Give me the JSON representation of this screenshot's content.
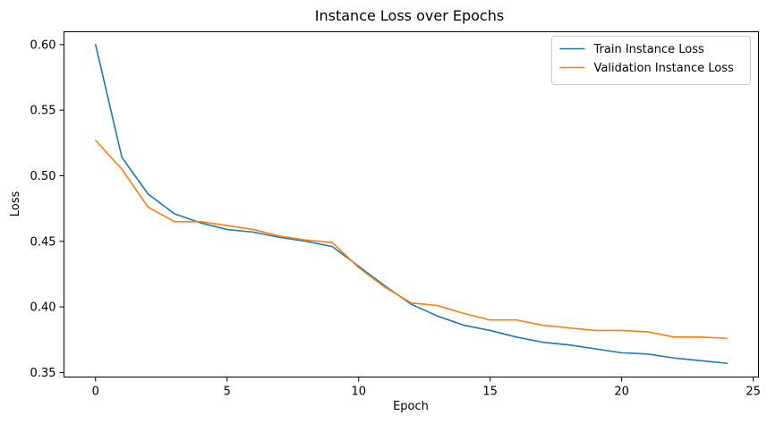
{
  "chart_data": {
    "type": "line",
    "title": "Instance Loss over Epochs",
    "xlabel": "Epoch",
    "ylabel": "Loss",
    "xlim": [
      -1.2,
      25.2
    ],
    "ylim": [
      0.3465,
      0.6098
    ],
    "x_ticks": [
      0,
      5,
      10,
      15,
      20,
      25
    ],
    "y_ticks": [
      0.35,
      0.4,
      0.45,
      0.5,
      0.55,
      0.6
    ],
    "x_tick_labels": [
      "0",
      "5",
      "10",
      "15",
      "20",
      "25"
    ],
    "y_tick_labels": [
      "0.35",
      "0.40",
      "0.45",
      "0.50",
      "0.55",
      "0.60"
    ],
    "grid": false,
    "legend_position": "top-right",
    "x": [
      0,
      1,
      2,
      3,
      4,
      5,
      6,
      7,
      8,
      9,
      10,
      11,
      12,
      13,
      14,
      15,
      16,
      17,
      18,
      19,
      20,
      21,
      22,
      23,
      24
    ],
    "series": [
      {
        "name": "Train Instance Loss",
        "color": "#1f77b4",
        "values": [
          0.6,
          0.514,
          0.486,
          0.471,
          0.464,
          0.459,
          0.457,
          0.453,
          0.45,
          0.446,
          0.431,
          0.416,
          0.402,
          0.393,
          0.386,
          0.382,
          0.377,
          0.373,
          0.371,
          0.368,
          0.365,
          0.364,
          0.361,
          0.359,
          0.357
        ]
      },
      {
        "name": "Validation Instance Loss",
        "color": "#ff7f0e",
        "values": [
          0.527,
          0.505,
          0.476,
          0.465,
          0.465,
          0.462,
          0.459,
          0.454,
          0.451,
          0.449,
          0.43,
          0.415,
          0.403,
          0.401,
          0.395,
          0.39,
          0.39,
          0.386,
          0.384,
          0.382,
          0.382,
          0.381,
          0.377,
          0.377,
          0.376
        ]
      }
    ]
  }
}
